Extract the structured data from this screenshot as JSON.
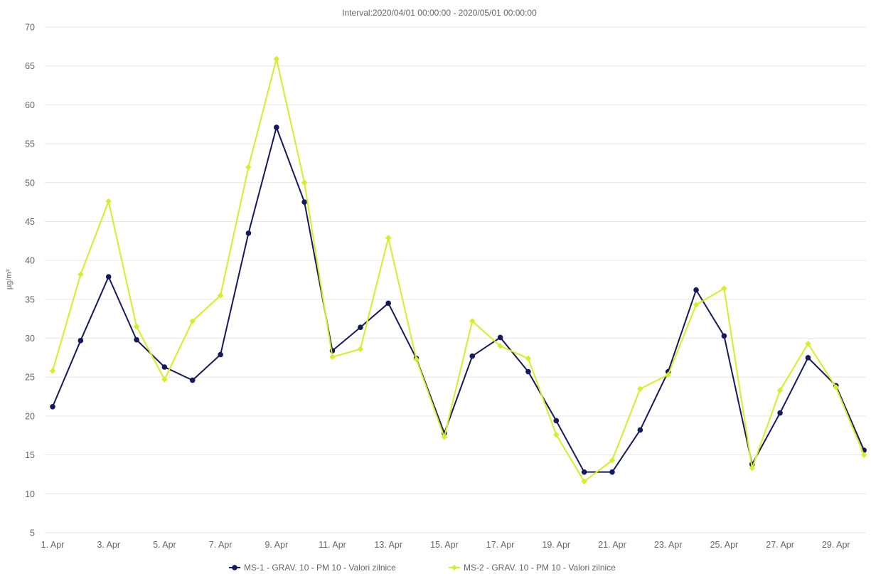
{
  "chart_data": {
    "type": "line",
    "subtitle": "Interval:2020/04/01 00:00:00 - 2020/05/01 00:00:00",
    "ylabel": "µg/m³",
    "ylim": [
      5,
      70
    ],
    "yticks": [
      5,
      10,
      15,
      20,
      25,
      30,
      35,
      40,
      45,
      50,
      55,
      60,
      65,
      70
    ],
    "grid": true,
    "legend_position": "bottom-center",
    "x": [
      "1. Apr",
      "2. Apr",
      "3. Apr",
      "4. Apr",
      "5. Apr",
      "6. Apr",
      "7. Apr",
      "8. Apr",
      "9. Apr",
      "10. Apr",
      "11. Apr",
      "12. Apr",
      "13. Apr",
      "14. Apr",
      "15. Apr",
      "16. Apr",
      "17. Apr",
      "18. Apr",
      "19. Apr",
      "20. Apr",
      "21. Apr",
      "22. Apr",
      "23. Apr",
      "24. Apr",
      "25. Apr",
      "26. Apr",
      "27. Apr",
      "28. Apr",
      "29. Apr",
      "30. Apr"
    ],
    "xtick_labels": [
      "1. Apr",
      "3. Apr",
      "5. Apr",
      "7. Apr",
      "9. Apr",
      "11. Apr",
      "13. Apr",
      "15. Apr",
      "17. Apr",
      "19. Apr",
      "21. Apr",
      "23. Apr",
      "25. Apr",
      "27. Apr",
      "29. Apr"
    ],
    "series": [
      {
        "name": "MS-1 - GRAV. 10 - PM 10 - Valori zilnice",
        "color": "#141a5c",
        "marker": "circle",
        "values": [
          21.2,
          29.7,
          37.9,
          29.8,
          26.3,
          24.6,
          27.9,
          43.5,
          57.1,
          47.5,
          28.4,
          31.4,
          34.5,
          27.4,
          17.8,
          27.7,
          30.1,
          25.7,
          19.4,
          12.8,
          12.8,
          18.2,
          25.7,
          36.2,
          30.3,
          13.8,
          20.4,
          27.5,
          23.9,
          15.6
        ]
      },
      {
        "name": "MS-2 - GRAV. 10 - PM 10 - Valori zilnice",
        "color": "#d4ef25",
        "marker": "diamond",
        "values": [
          25.8,
          38.2,
          47.6,
          31.5,
          24.7,
          32.2,
          35.5,
          52.0,
          65.9,
          50.0,
          27.6,
          28.6,
          42.9,
          27.3,
          17.3,
          32.2,
          29.0,
          27.4,
          17.6,
          11.6,
          14.3,
          23.5,
          25.3,
          34.3,
          36.4,
          13.3,
          23.3,
          29.3,
          23.7,
          15.0
        ]
      }
    ]
  }
}
